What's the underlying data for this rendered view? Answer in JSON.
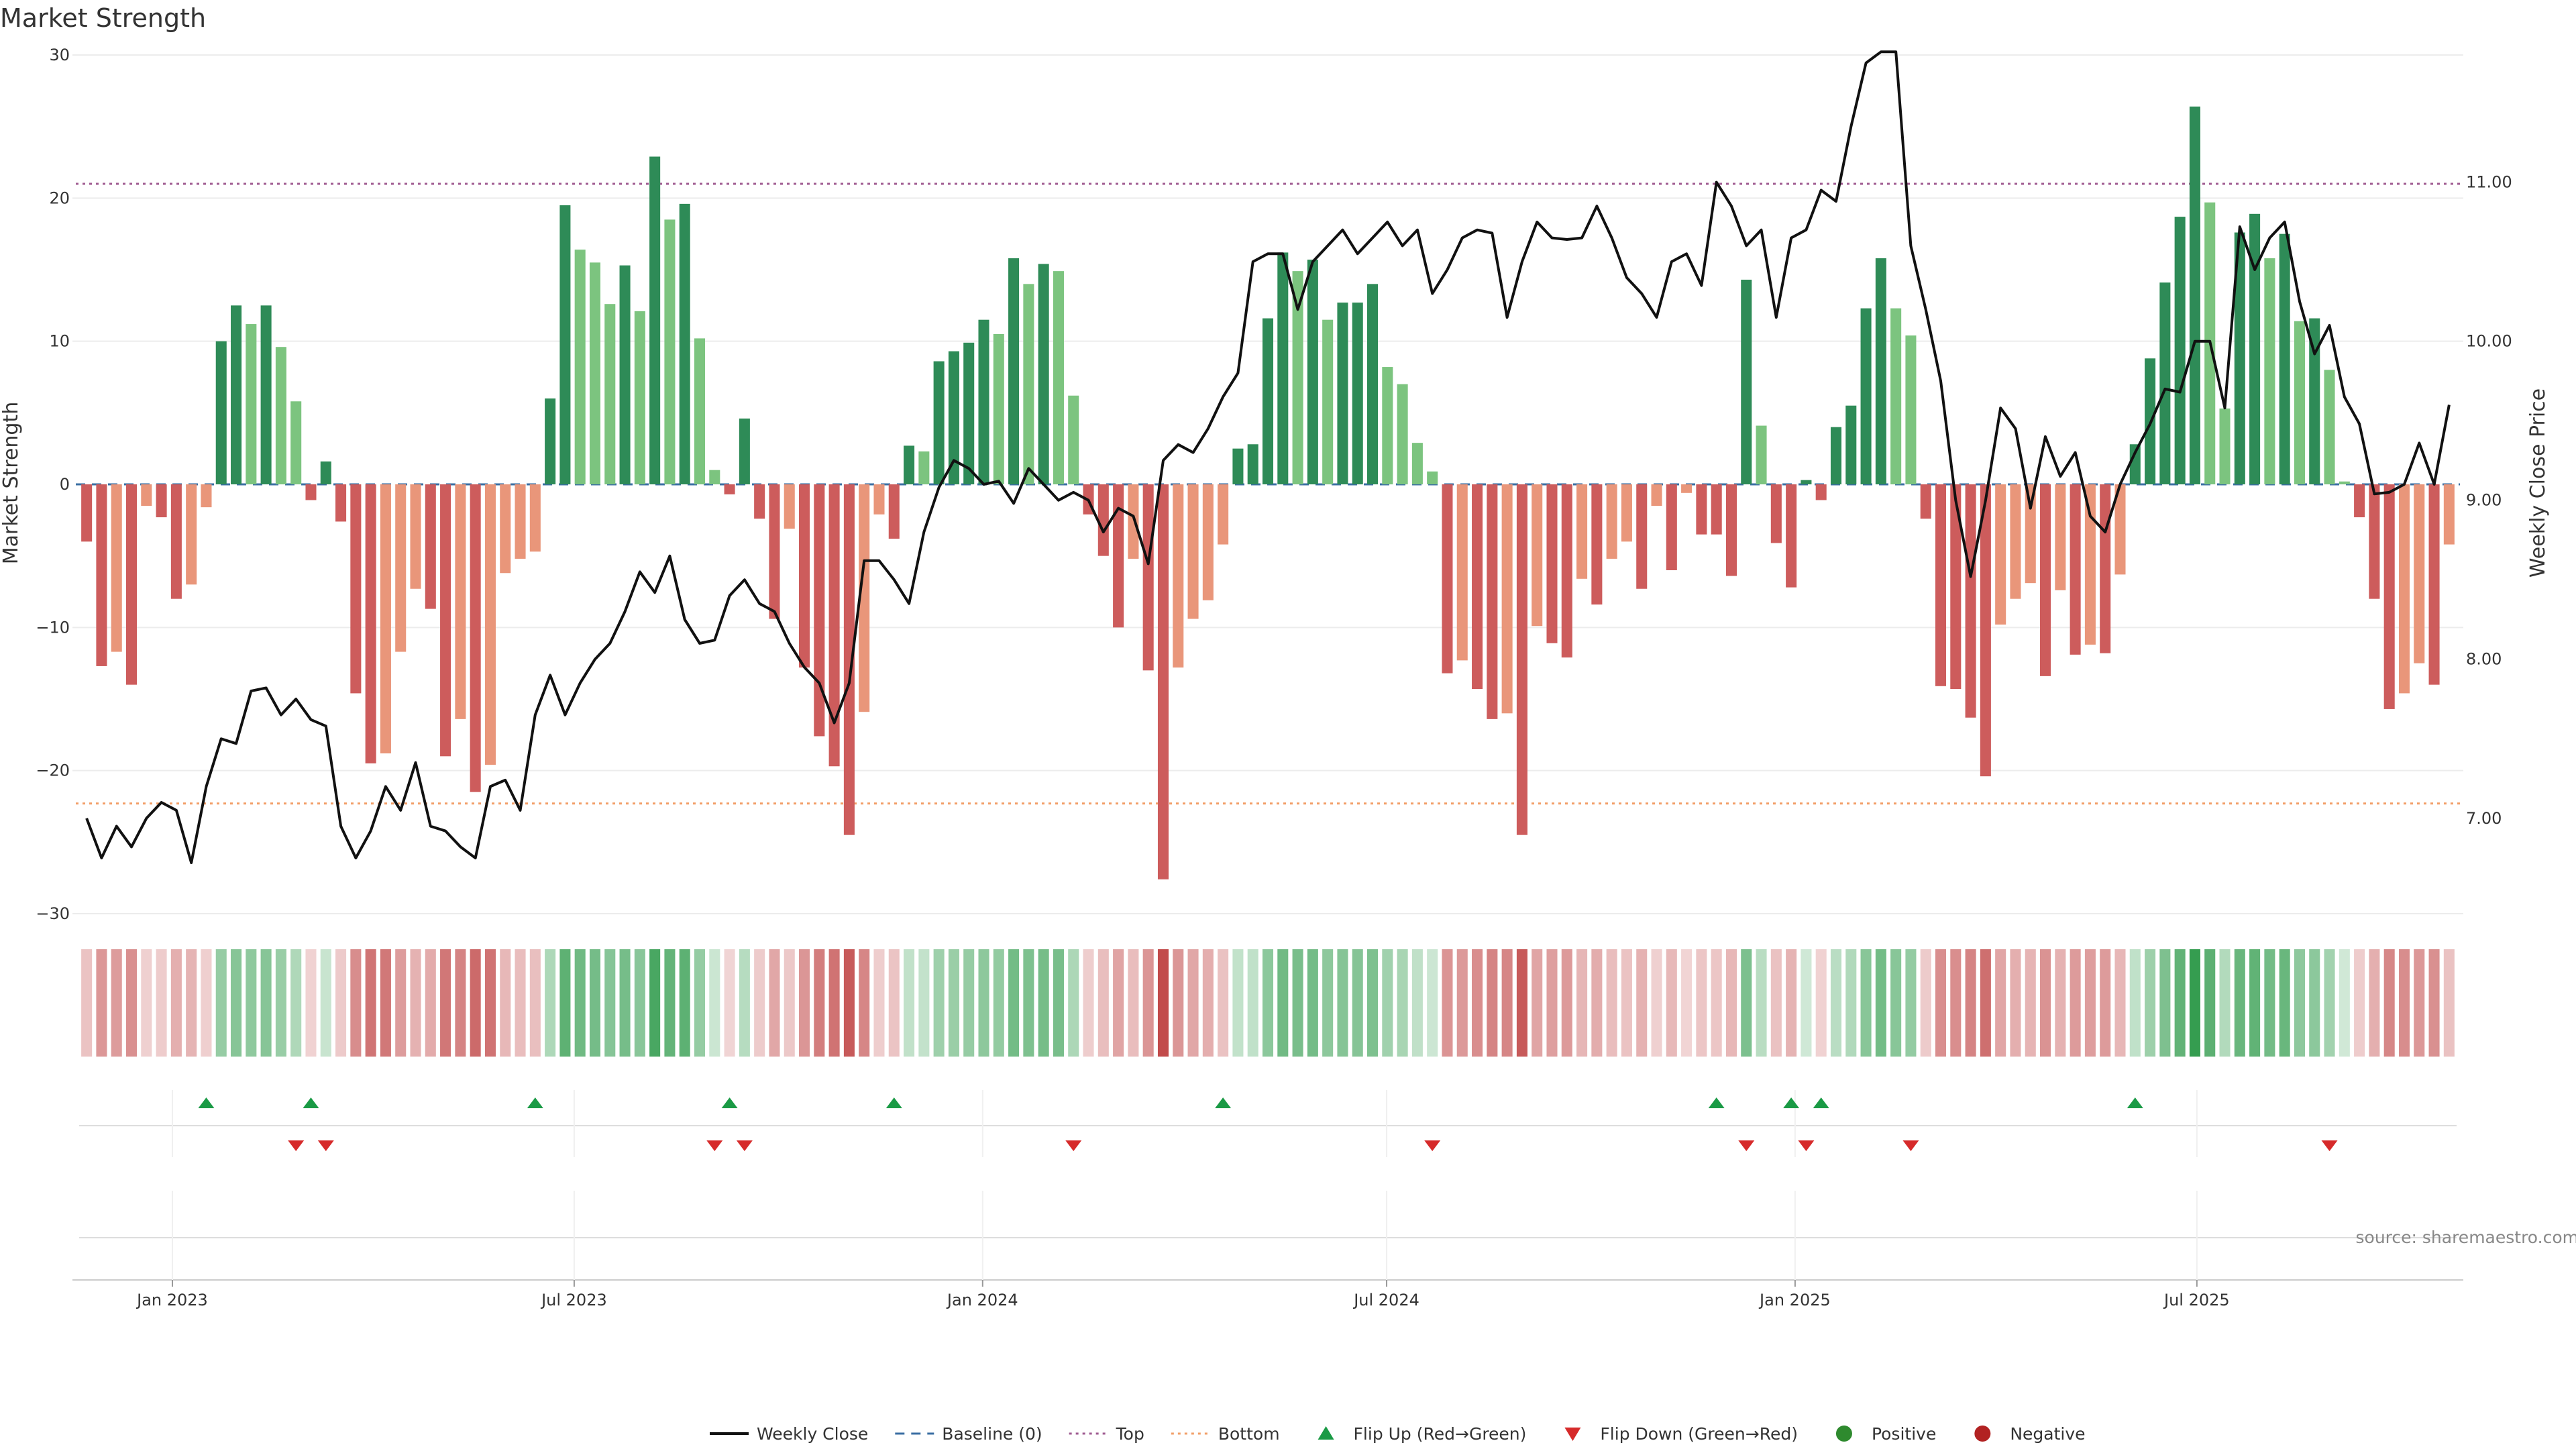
{
  "chart_data": {
    "type": "bar",
    "title": "Market Strength",
    "ylabel_left": "Market Strength",
    "ylabel_right": "Weekly Close Price",
    "y_left_range": [
      -30,
      30
    ],
    "y_left_ticks": [
      30,
      20,
      10,
      0,
      -10,
      -20,
      -30
    ],
    "y_left_tick_labels": [
      "30",
      "20",
      "10",
      "0",
      "−10",
      "−20",
      "−30"
    ],
    "y_right_range": [
      6.4,
      11.8
    ],
    "y_right_ticks": [
      7.0,
      8.0,
      9.0,
      10.0,
      11.0
    ],
    "y_right_tick_labels": [
      "7.00",
      "8.00",
      "9.00",
      "10.00",
      "11.00"
    ],
    "x_start": "2022-11-20",
    "x_end": "2025-10-26",
    "x_ticks": [
      "2023-01-01",
      "2023-07-01",
      "2024-01-01",
      "2024-07-01",
      "2025-01-01",
      "2025-07-01"
    ],
    "x_tick_labels": [
      "Jan 2023",
      "Jul 2023",
      "Jan 2024",
      "Jul 2024",
      "Jan 2025",
      "Jul 2025"
    ],
    "top_level": 21,
    "bottom_level": -22.3,
    "grid": true,
    "legend_position": "bottom-center",
    "strength": [
      -4,
      -12.7,
      -11.7,
      -14,
      -1.5,
      -2.3,
      -8,
      -7,
      -1.6,
      10,
      12.5,
      11.2,
      12.5,
      9.6,
      5.8,
      -1.1,
      1.6,
      -2.6,
      -14.6,
      -19.5,
      -18.8,
      -11.7,
      -7.3,
      -8.7,
      -19,
      -16.4,
      -21.5,
      -19.6,
      -6.2,
      -5.2,
      -4.7,
      6,
      19.5,
      16.4,
      15.5,
      12.6,
      15.3,
      12.1,
      22.9,
      18.5,
      19.6,
      10.2,
      1,
      -0.7,
      4.6,
      -2.4,
      -9.4,
      -3.1,
      -12.8,
      -17.6,
      -19.7,
      -24.5,
      -15.9,
      -2.1,
      -3.8,
      2.7,
      2.3,
      8.6,
      9.3,
      9.9,
      11.5,
      10.5,
      15.8,
      14,
      15.4,
      14.9,
      6.2,
      -2.1,
      -5,
      -10,
      -5.2,
      -13,
      -27.6,
      -12.8,
      -9.4,
      -8.1,
      -4.2,
      2.5,
      2.8,
      11.6,
      16.2,
      14.9,
      15.7,
      11.5,
      12.7,
      12.7,
      14,
      8.2,
      7,
      2.9,
      0.9,
      -13.2,
      -12.3,
      -14.3,
      -16.4,
      -16,
      -24.5,
      -9.9,
      -11.1,
      -12.1,
      -6.6,
      -8.4,
      -5.2,
      -4,
      -7.3,
      -1.5,
      -6,
      -0.6,
      -3.5,
      -3.5,
      -6.4,
      14.3,
      4.1,
      -4.1,
      -7.2,
      0.3,
      -1.1,
      4,
      5.5,
      12.3,
      15.8,
      12.3,
      10.4,
      -2.4,
      -14.1,
      -14.3,
      -16.3,
      -20.4,
      -9.8,
      -8,
      -6.9,
      -13.4,
      -7.4,
      -11.9,
      -11.2,
      -11.8,
      -6.3,
      2.8,
      8.8,
      14.1,
      18.7,
      26.4,
      19.7,
      5.3,
      17.6,
      18.9,
      15.8,
      17.5,
      11.4,
      11.6,
      8,
      0.2,
      -2.3,
      -8,
      -15.7,
      -14.6,
      -12.5,
      -14,
      -4.2
    ],
    "weekly_close": [
      7.0,
      6.75,
      6.95,
      6.82,
      7.0,
      7.1,
      7.05,
      6.72,
      7.2,
      7.5,
      7.47,
      7.8,
      7.82,
      7.65,
      7.75,
      7.62,
      7.58,
      6.95,
      6.75,
      6.92,
      7.2,
      7.05,
      7.35,
      6.95,
      6.92,
      6.82,
      6.75,
      7.2,
      7.24,
      7.05,
      7.65,
      7.9,
      7.65,
      7.85,
      8.0,
      8.1,
      8.3,
      8.55,
      8.42,
      8.65,
      8.25,
      8.1,
      8.12,
      8.4,
      8.5,
      8.35,
      8.3,
      8.1,
      7.95,
      7.85,
      7.6,
      7.85,
      8.62,
      8.62,
      8.5,
      8.35,
      8.8,
      9.08,
      9.25,
      9.2,
      9.1,
      9.12,
      8.98,
      9.2,
      9.1,
      9.0,
      9.05,
      9.0,
      8.8,
      8.95,
      8.9,
      8.6,
      9.25,
      9.35,
      9.3,
      9.45,
      9.65,
      9.8,
      10.5,
      10.55,
      10.55,
      10.2,
      10.5,
      10.6,
      10.7,
      10.55,
      10.65,
      10.75,
      10.6,
      10.7,
      10.3,
      10.45,
      10.65,
      10.7,
      10.68,
      10.15,
      10.5,
      10.75,
      10.65,
      10.64,
      10.65,
      10.85,
      10.65,
      10.4,
      10.3,
      10.15,
      10.5,
      10.55,
      10.35,
      11.0,
      10.85,
      10.6,
      10.7,
      10.15,
      10.65,
      10.7,
      10.95,
      10.88,
      11.35,
      11.75,
      11.82,
      11.82,
      10.6,
      10.2,
      9.75,
      9.0,
      8.52,
      9.0,
      9.58,
      9.45,
      8.95,
      9.4,
      9.15,
      9.3,
      8.9,
      8.8,
      9.1,
      9.3,
      9.48,
      9.7,
      9.68,
      10.0,
      10.0,
      9.58,
      10.72,
      10.45,
      10.65,
      10.75,
      10.25,
      9.92,
      10.1,
      9.65,
      9.48,
      9.04,
      9.05,
      9.1,
      9.36,
      9.1,
      9.6
    ],
    "flip_up_weeks": [
      8,
      15,
      30,
      43,
      54,
      76,
      109,
      114,
      116,
      137
    ],
    "flip_down_weeks": [
      14,
      16,
      42,
      44,
      66,
      90,
      111,
      115,
      122,
      150
    ],
    "source_text": "source: sharemaestro.com"
  },
  "legend": {
    "items": [
      {
        "label": "Weekly Close",
        "symbol": "line",
        "color": "#111111"
      },
      {
        "label": "Baseline (0)",
        "symbol": "dash",
        "color": "#3b6fa3"
      },
      {
        "label": "Top",
        "symbol": "dot",
        "color": "#a05c92"
      },
      {
        "label": "Bottom",
        "symbol": "dot",
        "color": "#f2a06a"
      },
      {
        "label": "Flip Up (Red→Green)",
        "symbol": "triangle-up",
        "color": "#1a9a45"
      },
      {
        "label": "Flip Down (Green→Red)",
        "symbol": "triangle-down",
        "color": "#d62a2a"
      },
      {
        "label": "Positive",
        "symbol": "circle",
        "color": "#2e8a2e"
      },
      {
        "label": "Negative",
        "symbol": "circle",
        "color": "#b22222"
      }
    ]
  },
  "colors": {
    "pos_strong": "#2e8b57",
    "pos_light": "#7cc47f",
    "neg_strong": "#cd5c5c",
    "neg_light": "#e9967a",
    "price_line": "#111111",
    "baseline": "#3b6fa3",
    "top": "#a05c92",
    "bottom": "#f2a06a",
    "flip_up": "#1a9a45",
    "flip_down": "#d62a2a",
    "grid": "#ececec"
  }
}
